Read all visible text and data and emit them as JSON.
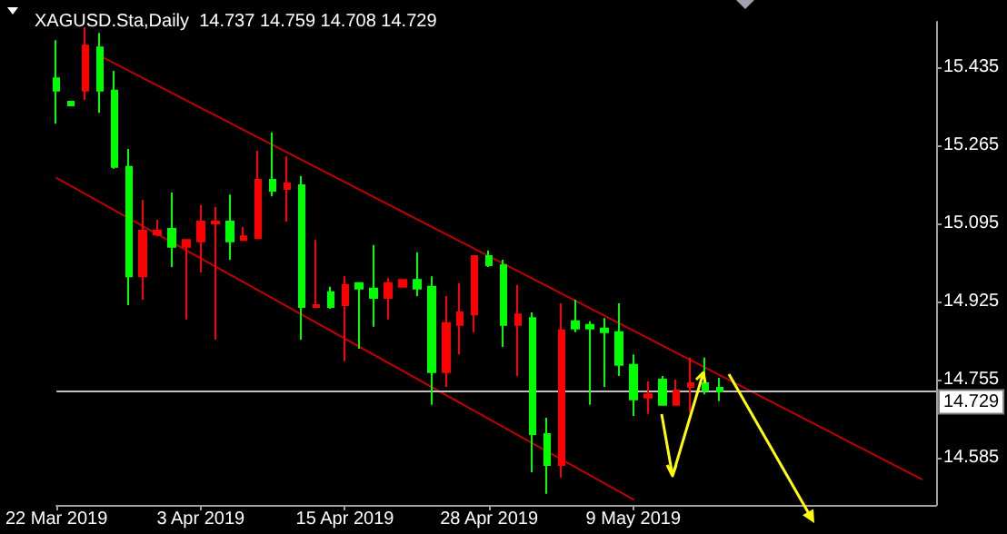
{
  "chart_data": {
    "type": "candlestick",
    "title": "XAGUSD.Sta,Daily  14.737 14.759 14.708 14.729",
    "categories": [
      "22 Mar 2019",
      null,
      null,
      null,
      null,
      null,
      null,
      null,
      null,
      null,
      "3 Apr 2019",
      null,
      null,
      null,
      null,
      null,
      null,
      null,
      null,
      null,
      "15 Apr 2019",
      null,
      null,
      null,
      null,
      null,
      null,
      null,
      null,
      null,
      "28 Apr 2019",
      null,
      null,
      null,
      null,
      null,
      null,
      null,
      null,
      null,
      "9 May 2019",
      null,
      null,
      null,
      null,
      null,
      null,
      null,
      null,
      null,
      null,
      null,
      null,
      null,
      null,
      null,
      null,
      null,
      null,
      null,
      null,
      null
    ],
    "ohlc": [
      [
        15.411,
        15.494,
        15.312,
        15.384
      ],
      [
        15.36,
        15.36,
        15.352,
        15.352
      ],
      [
        15.384,
        15.522,
        15.364,
        15.482
      ],
      [
        15.478,
        15.51,
        15.336,
        15.384
      ],
      [
        15.384,
        15.427,
        15.214,
        15.218
      ],
      [
        15.218,
        15.257,
        14.917,
        14.98
      ],
      [
        14.98,
        15.146,
        14.929,
        15.079
      ],
      [
        15.071,
        15.103,
        15.067,
        15.079
      ],
      [
        15.083,
        15.162,
        15.0,
        15.044
      ],
      [
        15.044,
        15.059,
        14.886,
        15.059
      ],
      [
        15.056,
        15.135,
        14.988,
        15.099
      ],
      [
        15.095,
        15.131,
        14.842,
        15.099
      ],
      [
        15.099,
        15.158,
        15.016,
        15.056
      ],
      [
        15.059,
        15.087,
        15.059,
        15.067
      ],
      [
        15.063,
        15.253,
        15.063,
        15.19
      ],
      [
        15.19,
        15.293,
        15.154,
        15.166
      ],
      [
        15.17,
        15.241,
        15.099,
        15.182
      ],
      [
        15.178,
        15.198,
        14.842,
        14.913
      ],
      [
        14.913,
        15.059,
        14.913,
        14.917
      ],
      [
        14.945,
        14.957,
        14.909,
        14.913
      ],
      [
        14.917,
        14.98,
        14.795,
        14.961
      ],
      [
        14.965,
        14.965,
        14.822,
        14.953
      ],
      [
        14.953,
        15.048,
        14.87,
        14.933
      ],
      [
        14.933,
        14.976,
        14.886,
        14.965
      ],
      [
        14.957,
        14.972,
        14.957,
        14.972
      ],
      [
        14.972,
        15.032,
        14.937,
        14.953
      ],
      [
        14.957,
        14.98,
        14.7,
        14.771
      ],
      [
        14.771,
        14.937,
        14.739,
        14.878
      ],
      [
        14.874,
        14.965,
        14.81,
        14.901
      ],
      [
        14.897,
        15.024,
        14.858,
        15.024
      ],
      [
        15.024,
        15.036,
        15.0,
        15.004
      ],
      [
        15.004,
        15.016,
        14.826,
        14.874
      ],
      [
        14.874,
        14.961,
        14.763,
        14.897
      ],
      [
        14.889,
        14.901,
        14.553,
        14.636
      ],
      [
        14.636,
        14.672,
        14.506,
        14.569
      ],
      [
        14.569,
        14.921,
        14.542,
        14.862
      ],
      [
        14.882,
        14.929,
        14.858,
        14.866
      ],
      [
        14.874,
        14.882,
        14.7,
        14.866
      ],
      [
        14.866,
        14.889,
        14.739,
        14.858
      ],
      [
        14.858,
        14.921,
        14.763,
        14.787
      ],
      [
        14.787,
        14.81,
        14.676,
        14.712
      ],
      [
        14.716,
        14.751,
        14.68,
        14.723
      ],
      [
        14.755,
        14.763,
        14.7,
        14.7
      ],
      [
        14.7,
        14.755,
        14.7,
        14.731
      ],
      [
        14.739,
        14.803,
        14.684,
        14.747
      ],
      [
        14.747,
        14.803,
        14.723,
        14.731
      ],
      [
        14.737,
        14.759,
        14.708,
        14.729
      ],
      null,
      null,
      null,
      null,
      null,
      null,
      null,
      null,
      null,
      null,
      null,
      null,
      null,
      null,
      null
    ],
    "colors": [
      "#00ff00",
      "#00ff00",
      "#ff0000",
      "#00ff00",
      "#00ff00",
      "#00ff00",
      "#ff0000",
      "#ff0000",
      "#00ff00",
      "#ff0000",
      "#ff0000",
      "#ff0000",
      "#00ff00",
      "#ff0000",
      "#ff0000",
      "#00ff00",
      "#ff0000",
      "#00ff00",
      "#ff0000",
      "#00ff00",
      "#ff0000",
      "#00ff00",
      "#00ff00",
      "#ff0000",
      "#ff0000",
      "#00ff00",
      "#00ff00",
      "#ff0000",
      "#ff0000",
      "#ff0000",
      "#00ff00",
      "#00ff00",
      "#ff0000",
      "#00ff00",
      "#00ff00",
      "#ff0000",
      "#00ff00",
      "#00ff00",
      "#00ff00",
      "#00ff00",
      "#00ff00",
      "#ff0000",
      "#00ff00",
      "#ff0000",
      "#ff0000",
      "#00ff00",
      "#00ff00",
      null,
      null,
      null,
      null,
      null,
      null,
      null,
      null,
      null,
      null,
      null,
      null,
      null,
      null,
      null
    ],
    "series": [
      {
        "type": "line",
        "color": "#c00000",
        "values": [
          null,
          null,
          null,
          15.46,
          null,
          null,
          null,
          null,
          null,
          null,
          null,
          null,
          null,
          null,
          null,
          null,
          null,
          null,
          null,
          null,
          null,
          null,
          null,
          null,
          null,
          null,
          null,
          null,
          null,
          null,
          null,
          null,
          null,
          null,
          null,
          null,
          null,
          null,
          null,
          null,
          null,
          null,
          null,
          null,
          null,
          null,
          null,
          null,
          null,
          null,
          null,
          null,
          null,
          null,
          null,
          null,
          null,
          null,
          null,
          null,
          14.538,
          null
        ]
      },
      {
        "type": "line",
        "color": "#c00000",
        "values": [
          15.194,
          null,
          null,
          null,
          null,
          null,
          null,
          null,
          null,
          null,
          null,
          null,
          null,
          null,
          null,
          null,
          null,
          null,
          null,
          null,
          null,
          null,
          null,
          null,
          null,
          null,
          null,
          null,
          null,
          null,
          null,
          null,
          null,
          null,
          null,
          null,
          null,
          null,
          null,
          null,
          14.494,
          null,
          null,
          null,
          null,
          null,
          null,
          null,
          null,
          null,
          null,
          null,
          null,
          null,
          null,
          null,
          null,
          null,
          null,
          null,
          null,
          null
        ]
      }
    ],
    "ylim": [
      14.482,
      15.534
    ],
    "yticks": [
      14.585,
      14.755,
      14.925,
      15.095,
      15.265,
      15.435
    ],
    "ref_lines": [
      {
        "axis": "y",
        "value": 14.729,
        "label": "14.729",
        "color": "#c0c0c0"
      }
    ]
  }
}
